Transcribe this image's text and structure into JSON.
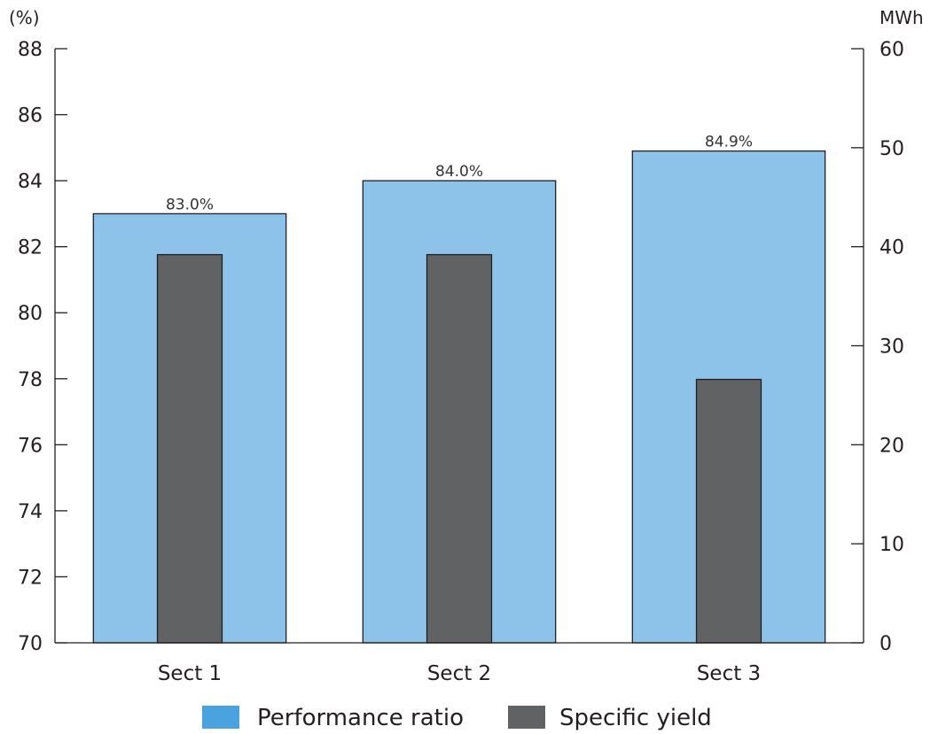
{
  "chart_data": {
    "type": "bar",
    "categories": [
      "Sect 1",
      "Sect 2",
      "Sect 3"
    ],
    "series": [
      {
        "name": "Performance ratio",
        "axis": "left",
        "values": [
          83.0,
          84.0,
          84.9
        ],
        "data_labels": [
          "83.0%",
          "84.0%",
          "84.9%"
        ],
        "color": "#8dc3e8"
      },
      {
        "name": "Specific yield",
        "axis": "right",
        "values": [
          39.2,
          39.2,
          26.6
        ],
        "color": "#616264"
      }
    ],
    "left_axis": {
      "unit": "(%)",
      "range": [
        70,
        88
      ],
      "ticks": [
        "70",
        "72",
        "74",
        "76",
        "78",
        "80",
        "82",
        "84",
        "86",
        "88"
      ]
    },
    "right_axis": {
      "unit": "MWh",
      "range": [
        0,
        60
      ],
      "ticks": [
        "0",
        "10",
        "20",
        "30",
        "40",
        "50",
        "60"
      ]
    },
    "grid": false,
    "legend": {
      "position": "bottom",
      "swatch_colors": [
        "#4aa3df",
        "#616264"
      ]
    }
  }
}
